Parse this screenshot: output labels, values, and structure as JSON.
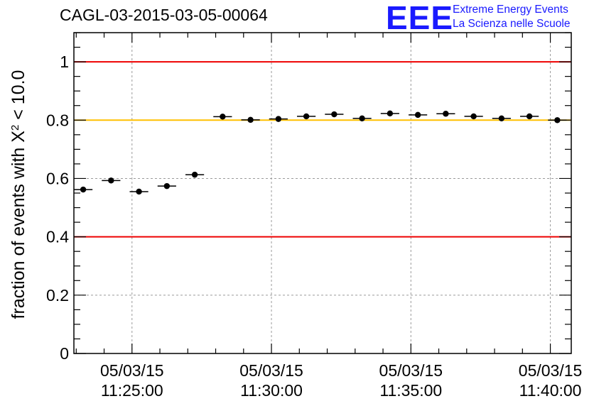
{
  "header": {
    "title": "CAGL-03-2015-03-05-00064",
    "logo_text": "EEE",
    "org_line1": "Extreme Energy Events",
    "org_line2": "La Scienza nelle Scuole"
  },
  "chart_data": {
    "type": "scatter",
    "title": "CAGL-03-2015-03-05-00064",
    "xlabel": "",
    "ylabel": "fraction of events with X² < 10.0",
    "ylabel_parts": {
      "pre": "fraction of events with X",
      "sup": "2",
      "post": " < 10.0"
    },
    "xlim": [
      "11:22:55",
      "11:40:45"
    ],
    "ylim": [
      0,
      1.1
    ],
    "x_ticks": [
      {
        "t": "11:25:00",
        "date": "05/03/15",
        "time": "11:25:00"
      },
      {
        "t": "11:30:00",
        "date": "05/03/15",
        "time": "11:30:00"
      },
      {
        "t": "11:35:00",
        "date": "05/03/15",
        "time": "11:35:00"
      },
      {
        "t": "11:40:00",
        "date": "05/03/15",
        "time": "11:40:00"
      }
    ],
    "y_ticks": [
      {
        "v": 0,
        "label": "0"
      },
      {
        "v": 0.2,
        "label": "0.2"
      },
      {
        "v": 0.4,
        "label": "0.4"
      },
      {
        "v": 0.6,
        "label": "0.6"
      },
      {
        "v": 0.8,
        "label": "0.8"
      },
      {
        "v": 1.0,
        "label": "1"
      }
    ],
    "grid": true,
    "reference_lines": [
      {
        "y": 1.0,
        "color": "#ee0000"
      },
      {
        "y": 0.8,
        "color": "#ffc000"
      },
      {
        "y": 0.4,
        "color": "#ee0000"
      }
    ],
    "points": [
      {
        "x": "11:23:15",
        "y": 0.562,
        "xerr_start": "11:22:55",
        "xerr_end": "11:23:35"
      },
      {
        "x": "11:24:15",
        "y": 0.593,
        "xerr_start": "11:23:55",
        "xerr_end": "11:24:35"
      },
      {
        "x": "11:25:15",
        "y": 0.555,
        "xerr_start": "11:24:55",
        "xerr_end": "11:25:35"
      },
      {
        "x": "11:26:15",
        "y": 0.574,
        "xerr_start": "11:25:55",
        "xerr_end": "11:26:35"
      },
      {
        "x": "11:27:15",
        "y": 0.613,
        "xerr_start": "11:26:55",
        "xerr_end": "11:27:35"
      },
      {
        "x": "11:28:15",
        "y": 0.812,
        "xerr_start": "11:27:55",
        "xerr_end": "11:28:35"
      },
      {
        "x": "11:29:15",
        "y": 0.801,
        "xerr_start": "11:28:55",
        "xerr_end": "11:29:35"
      },
      {
        "x": "11:30:15",
        "y": 0.804,
        "xerr_start": "11:29:55",
        "xerr_end": "11:30:35"
      },
      {
        "x": "11:31:15",
        "y": 0.813,
        "xerr_start": "11:30:55",
        "xerr_end": "11:31:35"
      },
      {
        "x": "11:32:15",
        "y": 0.82,
        "xerr_start": "11:31:55",
        "xerr_end": "11:32:35"
      },
      {
        "x": "11:33:15",
        "y": 0.806,
        "xerr_start": "11:32:55",
        "xerr_end": "11:33:35"
      },
      {
        "x": "11:34:15",
        "y": 0.823,
        "xerr_start": "11:33:55",
        "xerr_end": "11:34:35"
      },
      {
        "x": "11:35:15",
        "y": 0.818,
        "xerr_start": "11:34:55",
        "xerr_end": "11:35:35"
      },
      {
        "x": "11:36:15",
        "y": 0.822,
        "xerr_start": "11:35:55",
        "xerr_end": "11:36:35"
      },
      {
        "x": "11:37:15",
        "y": 0.813,
        "xerr_start": "11:36:55",
        "xerr_end": "11:37:35"
      },
      {
        "x": "11:38:15",
        "y": 0.806,
        "xerr_start": "11:37:55",
        "xerr_end": "11:38:35"
      },
      {
        "x": "11:39:15",
        "y": 0.813,
        "xerr_start": "11:38:55",
        "xerr_end": "11:39:35"
      },
      {
        "x": "11:40:15",
        "y": 0.8,
        "xerr_start": "11:39:55",
        "xerr_end": "11:40:35"
      }
    ]
  }
}
